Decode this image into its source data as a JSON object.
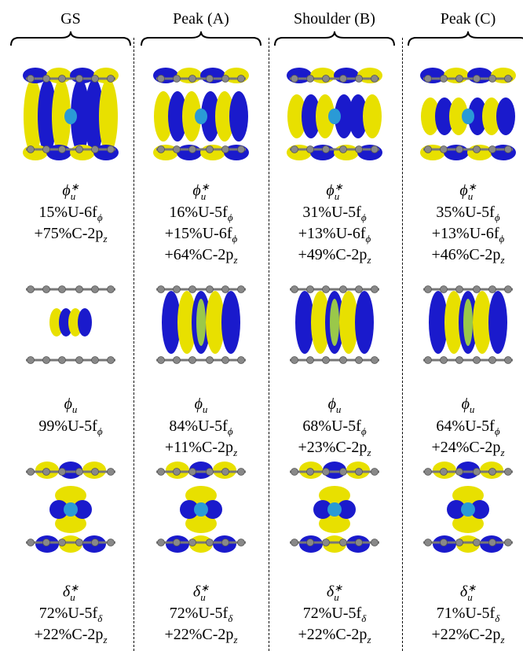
{
  "columns": [
    {
      "header": "GS",
      "cells": [
        {
          "symbol": {
            "base": "ϕ",
            "sup": "∗",
            "sub": "u"
          },
          "lines": [
            {
              "text": "15%U-6f",
              "sub": "ϕ"
            },
            {
              "text": "+75%C-2p",
              "sub": "z"
            }
          ]
        },
        {
          "symbol": {
            "base": "ϕ",
            "sub": "u"
          },
          "lines": [
            {
              "text": "99%U-5f",
              "sub": "ϕ"
            }
          ]
        },
        {
          "symbol": {
            "base": "δ",
            "sup": "∗",
            "sub": "u"
          },
          "lines": [
            {
              "text": "72%U-5f",
              "sub": "δ"
            },
            {
              "text": "+22%C-2p",
              "sub": "z"
            }
          ]
        }
      ]
    },
    {
      "header": "Peak (A)",
      "cells": [
        {
          "symbol": {
            "base": "ϕ",
            "sup": "∗",
            "sub": "u"
          },
          "lines": [
            {
              "text": "16%U-5f",
              "sub": "ϕ"
            },
            {
              "text": "+15%U-6f",
              "sub": "ϕ"
            },
            {
              "text": "+64%C-2p",
              "sub": "z"
            }
          ]
        },
        {
          "symbol": {
            "base": "ϕ",
            "sub": "u"
          },
          "lines": [
            {
              "text": "84%U-5f",
              "sub": "ϕ"
            },
            {
              "text": "+11%C-2p",
              "sub": "z"
            }
          ]
        },
        {
          "symbol": {
            "base": "δ",
            "sup": "∗",
            "sub": "u"
          },
          "lines": [
            {
              "text": "72%U-5f",
              "sub": "δ"
            },
            {
              "text": "+22%C-2p",
              "sub": "z"
            }
          ]
        }
      ]
    },
    {
      "header": "Shoulder (B)",
      "cells": [
        {
          "symbol": {
            "base": "ϕ",
            "sup": "∗",
            "sub": "u"
          },
          "lines": [
            {
              "text": "31%U-5f",
              "sub": "ϕ"
            },
            {
              "text": "+13%U-6f",
              "sub": "ϕ"
            },
            {
              "text": "+49%C-2p",
              "sub": "z"
            }
          ]
        },
        {
          "symbol": {
            "base": "ϕ",
            "sub": "u"
          },
          "lines": [
            {
              "text": "68%U-5f",
              "sub": "ϕ"
            },
            {
              "text": "+23%C-2p",
              "sub": "z"
            }
          ]
        },
        {
          "symbol": {
            "base": "δ",
            "sup": "∗",
            "sub": "u"
          },
          "lines": [
            {
              "text": "72%U-5f",
              "sub": "δ"
            },
            {
              "text": "+22%C-2p",
              "sub": "z"
            }
          ]
        }
      ]
    },
    {
      "header": "Peak (C)",
      "cells": [
        {
          "symbol": {
            "base": "ϕ",
            "sup": "∗",
            "sub": "u"
          },
          "lines": [
            {
              "text": "35%U-5f",
              "sub": "ϕ"
            },
            {
              "text": "+13%U-6f",
              "sub": "ϕ"
            },
            {
              "text": "+46%C-2p",
              "sub": "z"
            }
          ]
        },
        {
          "symbol": {
            "base": "ϕ",
            "sub": "u"
          },
          "lines": [
            {
              "text": "64%U-5f",
              "sub": "ϕ"
            },
            {
              "text": "+24%C-2p",
              "sub": "z"
            }
          ]
        },
        {
          "symbol": {
            "base": "δ",
            "sup": "∗",
            "sub": "u"
          },
          "lines": [
            {
              "text": "71%U-5f",
              "sub": "δ"
            },
            {
              "text": "+22%C-2p",
              "sub": "z"
            }
          ]
        }
      ]
    }
  ]
}
